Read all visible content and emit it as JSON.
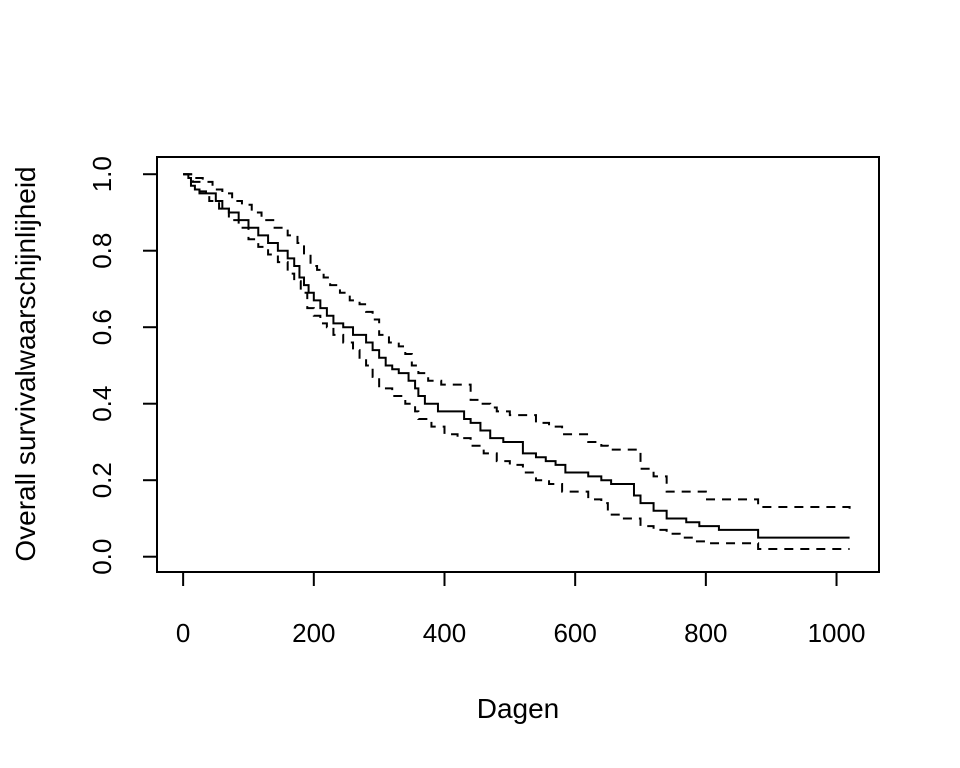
{
  "chart_data": {
    "type": "line",
    "title": "",
    "xlabel": "Dagen",
    "ylabel": "Overall survivalwaarschijnlijheid",
    "xlim": [
      -40,
      1065
    ],
    "ylim": [
      -0.04,
      1.045
    ],
    "x_ticks": [
      0,
      200,
      400,
      600,
      800,
      1000
    ],
    "y_ticks": [
      0.0,
      0.2,
      0.4,
      0.6,
      0.8,
      1.0
    ],
    "x_tick_labels": [
      "0",
      "200",
      "400",
      "600",
      "800",
      "1000"
    ],
    "y_tick_labels": [
      "0.0",
      "0.2",
      "0.4",
      "0.6",
      "0.8",
      "1.0"
    ],
    "grid": false,
    "legend": "none",
    "series": [
      {
        "style": "solid",
        "x": [
          0,
          8,
          12,
          18,
          25,
          35,
          50,
          60,
          70,
          85,
          100,
          115,
          130,
          145,
          160,
          170,
          178,
          185,
          192,
          200,
          210,
          220,
          230,
          245,
          260,
          280,
          290,
          300,
          310,
          320,
          330,
          345,
          355,
          360,
          370,
          390,
          420,
          430,
          440,
          455,
          470,
          490,
          510,
          520,
          540,
          555,
          570,
          585,
          620,
          640,
          655,
          690,
          700,
          720,
          740,
          770,
          790,
          820,
          880,
          1020
        ],
        "y": [
          1.0,
          0.99,
          0.97,
          0.96,
          0.955,
          0.95,
          0.93,
          0.91,
          0.9,
          0.88,
          0.86,
          0.84,
          0.82,
          0.8,
          0.78,
          0.76,
          0.73,
          0.71,
          0.69,
          0.67,
          0.65,
          0.63,
          0.61,
          0.6,
          0.58,
          0.56,
          0.54,
          0.52,
          0.5,
          0.49,
          0.48,
          0.46,
          0.44,
          0.42,
          0.4,
          0.38,
          0.38,
          0.36,
          0.35,
          0.33,
          0.31,
          0.3,
          0.3,
          0.27,
          0.26,
          0.25,
          0.24,
          0.22,
          0.21,
          0.2,
          0.19,
          0.16,
          0.14,
          0.12,
          0.1,
          0.09,
          0.08,
          0.07,
          0.05,
          0.05
        ]
      },
      {
        "style": "dashed",
        "x": [
          0,
          15,
          30,
          45,
          60,
          75,
          90,
          105,
          120,
          140,
          160,
          175,
          185,
          195,
          205,
          215,
          225,
          240,
          255,
          270,
          280,
          290,
          300,
          315,
          330,
          340,
          350,
          360,
          375,
          395,
          420,
          440,
          455,
          470,
          480,
          500,
          520,
          540,
          560,
          580,
          620,
          640,
          650,
          700,
          720,
          740,
          800,
          880,
          1020
        ],
        "y": [
          1.0,
          0.99,
          0.98,
          0.96,
          0.95,
          0.93,
          0.92,
          0.9,
          0.88,
          0.86,
          0.84,
          0.82,
          0.79,
          0.76,
          0.75,
          0.73,
          0.71,
          0.69,
          0.67,
          0.66,
          0.64,
          0.62,
          0.58,
          0.56,
          0.55,
          0.53,
          0.5,
          0.48,
          0.46,
          0.45,
          0.45,
          0.41,
          0.4,
          0.39,
          0.38,
          0.37,
          0.37,
          0.35,
          0.34,
          0.32,
          0.3,
          0.29,
          0.28,
          0.23,
          0.21,
          0.17,
          0.15,
          0.13,
          0.12
        ]
      },
      {
        "style": "dashed",
        "x": [
          0,
          15,
          25,
          40,
          55,
          70,
          85,
          100,
          115,
          130,
          145,
          160,
          170,
          180,
          190,
          200,
          210,
          220,
          230,
          245,
          260,
          270,
          280,
          290,
          300,
          320,
          340,
          355,
          360,
          380,
          400,
          420,
          440,
          460,
          480,
          500,
          520,
          540,
          560,
          580,
          620,
          640,
          650,
          670,
          700,
          720,
          740,
          760,
          780,
          800,
          880,
          1020
        ],
        "y": [
          1.0,
          0.98,
          0.95,
          0.93,
          0.91,
          0.88,
          0.86,
          0.83,
          0.81,
          0.79,
          0.77,
          0.74,
          0.72,
          0.69,
          0.65,
          0.63,
          0.61,
          0.6,
          0.58,
          0.56,
          0.54,
          0.52,
          0.5,
          0.47,
          0.44,
          0.42,
          0.4,
          0.38,
          0.36,
          0.34,
          0.32,
          0.31,
          0.29,
          0.27,
          0.25,
          0.24,
          0.22,
          0.2,
          0.19,
          0.17,
          0.15,
          0.14,
          0.11,
          0.1,
          0.08,
          0.07,
          0.06,
          0.05,
          0.04,
          0.035,
          0.02,
          0.02
        ]
      }
    ]
  }
}
